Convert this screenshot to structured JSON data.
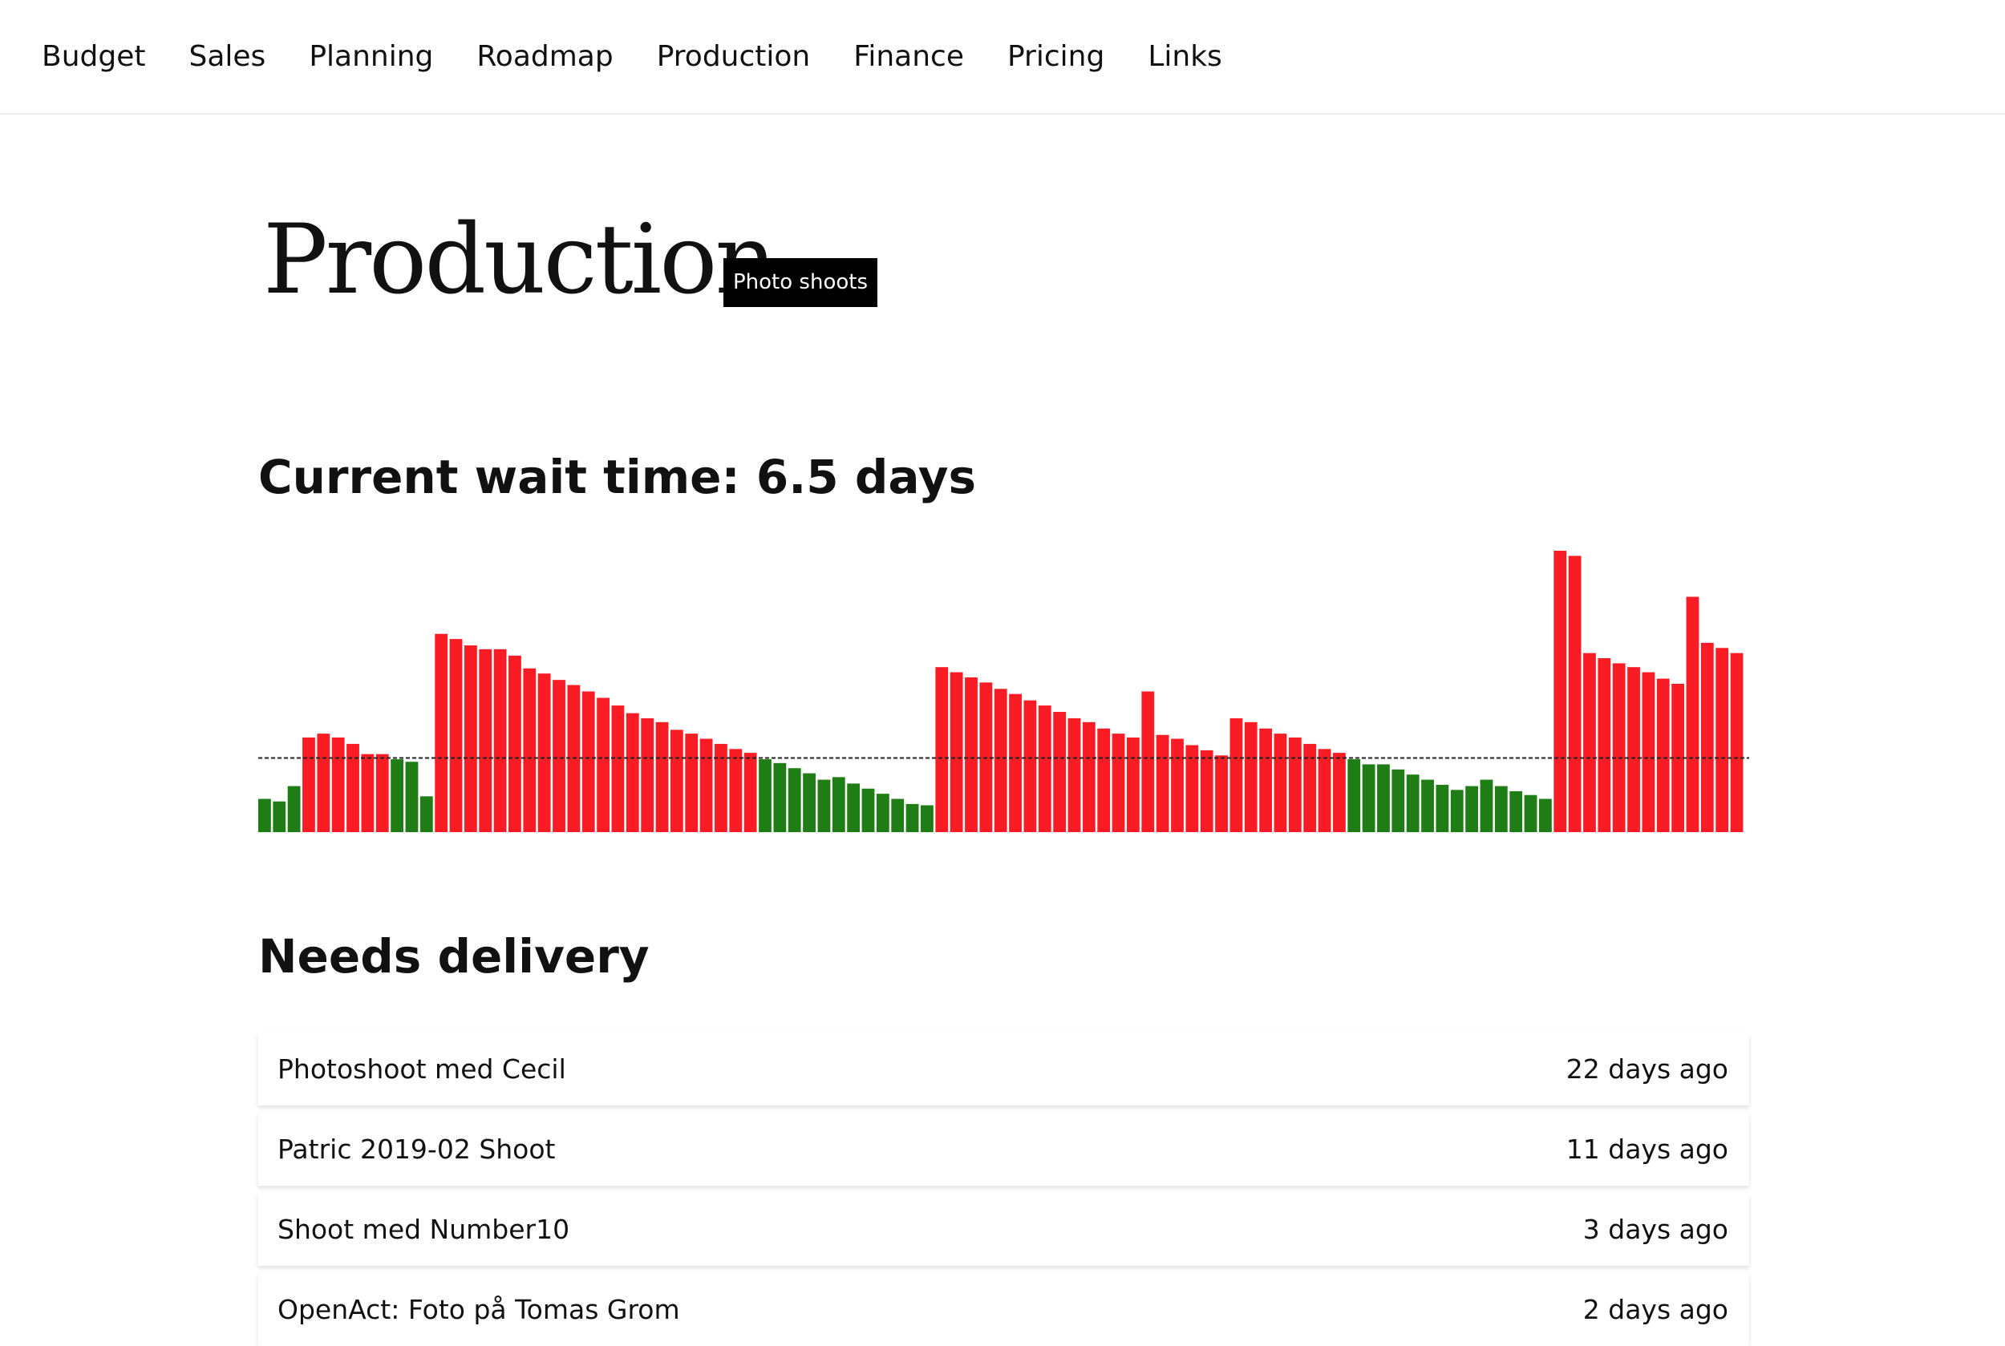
{
  "nav": {
    "items": [
      "Budget",
      "Sales",
      "Planning",
      "Roadmap",
      "Production",
      "Finance",
      "Pricing",
      "Links"
    ]
  },
  "header": {
    "title": "Production",
    "badge": "Photo shoots"
  },
  "wait": {
    "heading": "Current wait time: 6.5 days"
  },
  "chart_data": {
    "type": "bar",
    "values": [
      26,
      24,
      36,
      74,
      77,
      74,
      69,
      61,
      61,
      57,
      55,
      28,
      155,
      151,
      146,
      143,
      143,
      138,
      128,
      124,
      119,
      115,
      110,
      105,
      99,
      93,
      89,
      86,
      80,
      77,
      73,
      69,
      65,
      62,
      57,
      54,
      50,
      46,
      41,
      43,
      38,
      34,
      30,
      26,
      22,
      21,
      129,
      125,
      121,
      117,
      112,
      108,
      103,
      99,
      94,
      89,
      86,
      81,
      77,
      74,
      110,
      76,
      73,
      68,
      64,
      60,
      89,
      86,
      81,
      77,
      74,
      69,
      65,
      62,
      57,
      53,
      53,
      49,
      45,
      41,
      37,
      33,
      36,
      41,
      36,
      32,
      29,
      26,
      220,
      216,
      140,
      136,
      132,
      129,
      125,
      120,
      116,
      184,
      148,
      144,
      140
    ],
    "ylim": [
      0,
      220
    ],
    "threshold": 58,
    "colors": {
      "above": "#fa1c24",
      "below": "#1f7d16"
    }
  },
  "deliveries": {
    "heading": "Needs delivery",
    "items": [
      {
        "name": "Photoshoot med Cecil",
        "age": "22 days ago"
      },
      {
        "name": "Patric 2019-02 Shoot",
        "age": "11 days ago"
      },
      {
        "name": "Shoot med Number10",
        "age": "3 days ago"
      },
      {
        "name": "OpenAct: Foto på Tomas Grom",
        "age": "2 days ago"
      }
    ]
  }
}
